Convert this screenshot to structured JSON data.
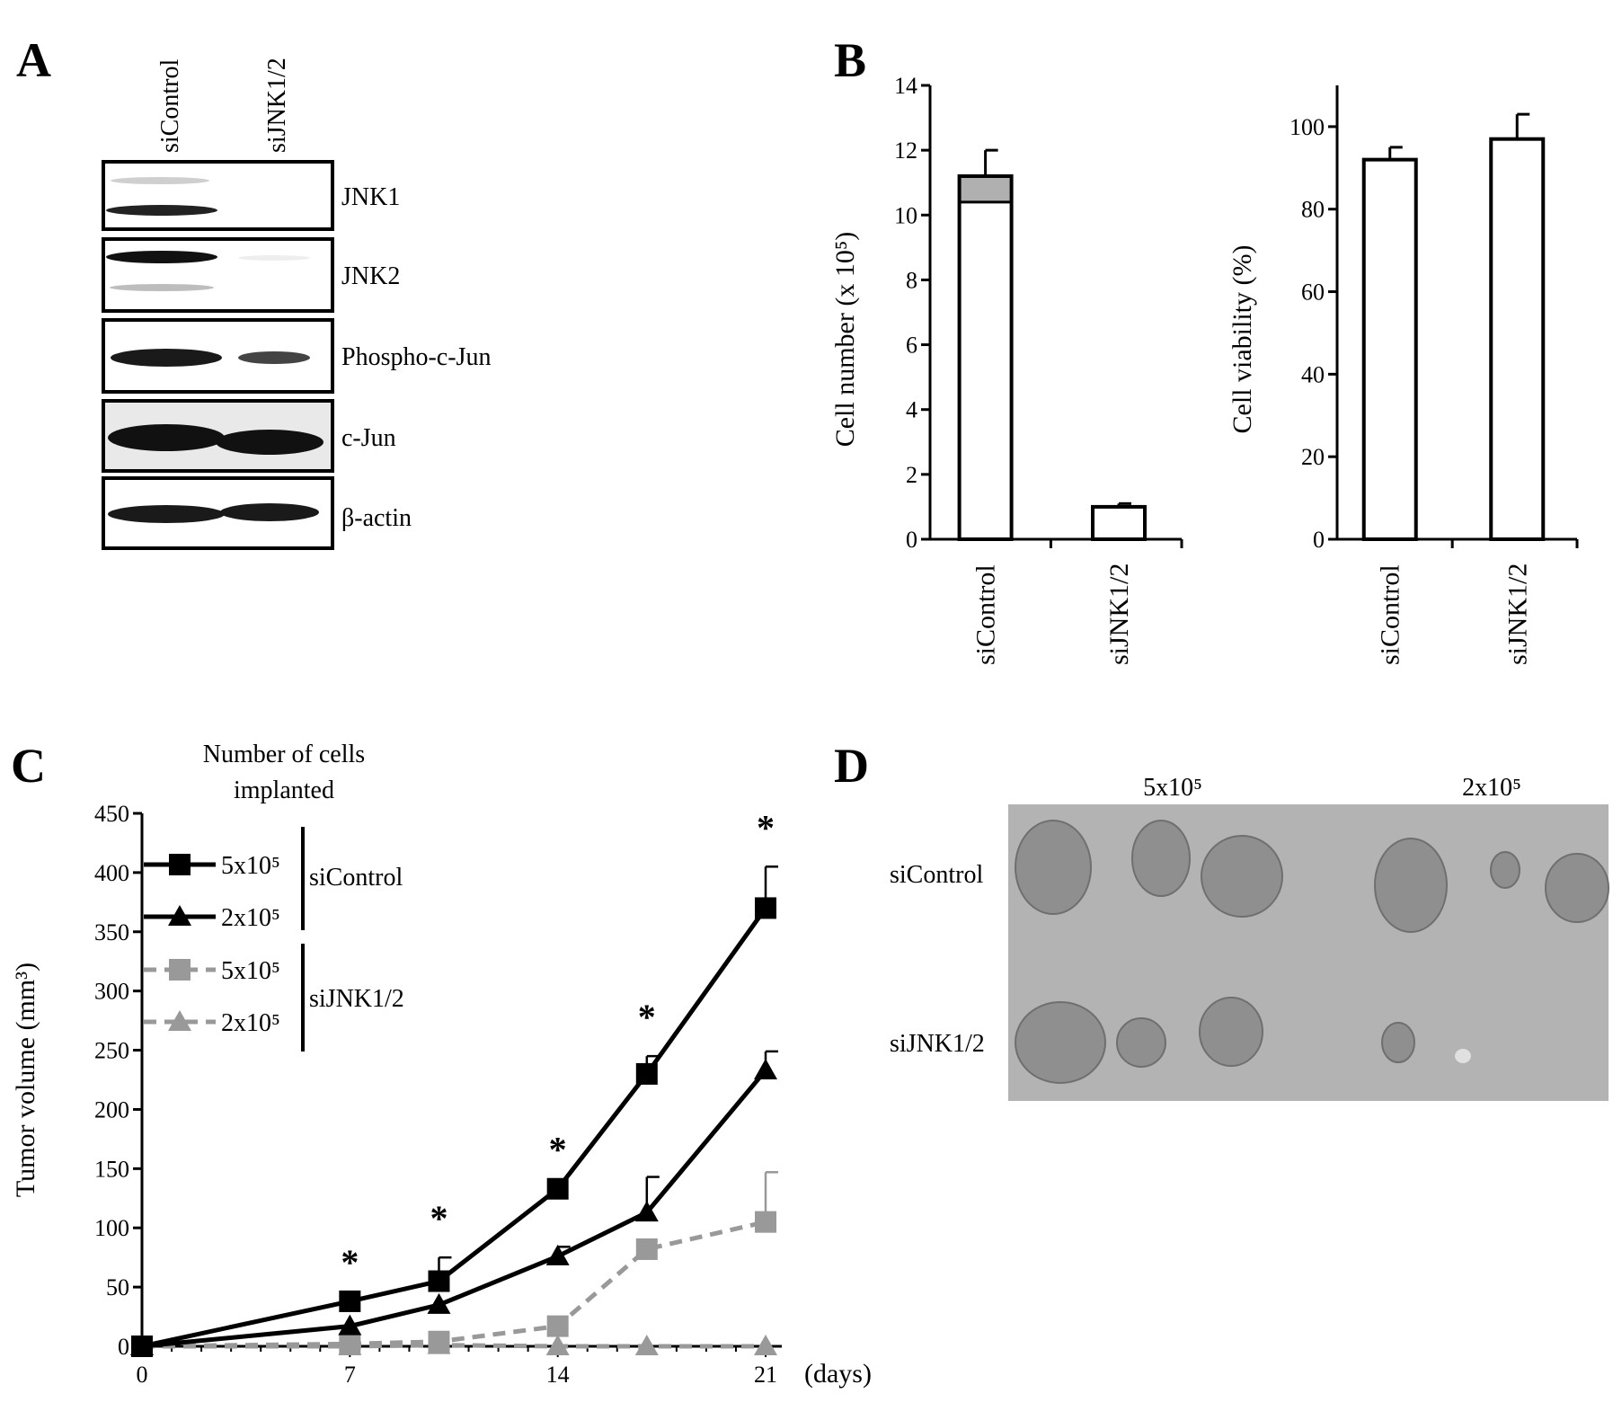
{
  "panels": {
    "A": {
      "letter": "A",
      "lanes": [
        "siControl",
        "siJNK1/2"
      ],
      "blots": [
        {
          "label": "JNK1"
        },
        {
          "label": "JNK2"
        },
        {
          "label": "Phospho-c-Jun"
        },
        {
          "label": "c-Jun"
        },
        {
          "label": "β-actin"
        }
      ]
    },
    "B": {
      "letter": "B",
      "chart_data": [
        {
          "type": "bar",
          "categories": [
            "siControl",
            "siJNK1/2"
          ],
          "values": [
            11.2,
            1.0
          ],
          "errors": [
            0.8,
            0.1
          ],
          "ylabel": "Cell number (x 10⁵)",
          "ylim": [
            0,
            14
          ],
          "yticks": [
            "0",
            "2",
            "4",
            "6",
            "8",
            "10",
            "12",
            "14"
          ]
        },
        {
          "type": "bar",
          "categories": [
            "siControl",
            "siJNK1/2"
          ],
          "values": [
            92,
            97
          ],
          "errors": [
            3,
            6
          ],
          "ylabel": "Cell viability (%)",
          "ylim": [
            0,
            110
          ],
          "yticks": [
            "0",
            "20",
            "40",
            "60",
            "80",
            "100"
          ]
        }
      ]
    },
    "C": {
      "letter": "C",
      "legend_title_1": "Number of cells",
      "legend_title_2": "implanted",
      "group_labels": [
        "siControl",
        "siJNK1/2"
      ],
      "x_unit": "(days)",
      "chart_data": {
        "type": "line",
        "ylabel": "Tumor volume (mm³)",
        "xticks": [
          "0",
          "7",
          "14",
          "21"
        ],
        "yticks": [
          "0",
          "50",
          "100",
          "150",
          "200",
          "250",
          "300",
          "350",
          "400",
          "450"
        ],
        "xlim": [
          0,
          21
        ],
        "ylim": [
          0,
          450
        ],
        "x": [
          0,
          7,
          10,
          14,
          17,
          21
        ],
        "series": [
          {
            "name": "5x10⁵",
            "group": "siControl",
            "color": "#000000",
            "marker": "square",
            "dashed": false,
            "values": [
              0,
              38,
              55,
              133,
              230,
              370
            ],
            "errors": [
              0,
              0,
              20,
              0,
              15,
              35
            ]
          },
          {
            "name": "2x10⁵",
            "group": "siControl",
            "color": "#000000",
            "marker": "triangle",
            "dashed": false,
            "values": [
              0,
              17,
              35,
              76,
              113,
              233
            ],
            "errors": [
              0,
              0,
              0,
              8,
              30,
              16
            ]
          },
          {
            "name": "5x10⁵",
            "group": "siJNK1/2",
            "color": "#999999",
            "marker": "square",
            "dashed": true,
            "values": [
              0,
              2,
              4,
              17,
              82,
              105
            ],
            "errors": [
              0,
              0,
              0,
              0,
              0,
              42
            ]
          },
          {
            "name": "2x10⁵",
            "group": "siJNK1/2",
            "color": "#999999",
            "marker": "triangle",
            "dashed": true,
            "values": [
              0,
              0,
              1,
              0,
              0,
              0
            ],
            "errors": [
              0,
              0,
              0,
              0,
              0,
              0
            ]
          }
        ],
        "significance": [
          "*",
          "*",
          "*",
          "*",
          "*"
        ],
        "significance_x": [
          7,
          10,
          14,
          17,
          21
        ]
      }
    },
    "D": {
      "letter": "D",
      "column_labels": [
        "5x10⁵",
        "2x10⁵"
      ],
      "row_labels": [
        "siControl",
        "siJNK1/2"
      ],
      "photo_colors": {
        "background": "#b3b3b3",
        "tumor": "#8f8f8f"
      }
    }
  }
}
